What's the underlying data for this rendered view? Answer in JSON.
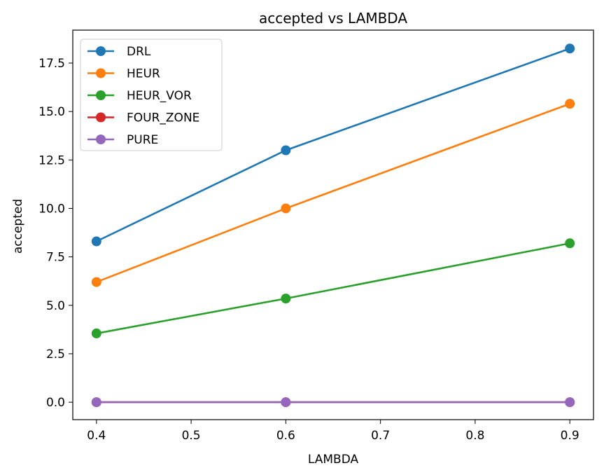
{
  "chart_data": {
    "type": "line",
    "title": "accepted vs LAMBDA",
    "xlabel": "LAMBDA",
    "ylabel": "accepted",
    "x": [
      0.4,
      0.6,
      0.9
    ],
    "xlim": [
      0.375,
      0.925
    ],
    "ylim": [
      -0.9,
      19.2
    ],
    "xticks": [
      "0.4",
      "0.5",
      "0.6",
      "0.7",
      "0.8",
      "0.9"
    ],
    "yticks": [
      "0.0",
      "2.5",
      "5.0",
      "7.5",
      "10.0",
      "12.5",
      "15.0",
      "17.5"
    ],
    "grid": false,
    "legend_position": "top-left",
    "series": [
      {
        "name": "DRL",
        "color": "#1f77b4",
        "values": [
          8.3,
          13.0,
          18.25
        ]
      },
      {
        "name": "HEUR",
        "color": "#ff7f0e",
        "values": [
          6.2,
          10.0,
          15.4
        ]
      },
      {
        "name": "HEUR_VOR",
        "color": "#2ca02c",
        "values": [
          3.55,
          5.35,
          8.2
        ]
      },
      {
        "name": "FOUR_ZONE",
        "color": "#d62728",
        "values": [
          0.0,
          0.0,
          0.0
        ]
      },
      {
        "name": "PURE",
        "color": "#9467bd",
        "values": [
          0.0,
          0.0,
          0.0
        ]
      }
    ]
  }
}
